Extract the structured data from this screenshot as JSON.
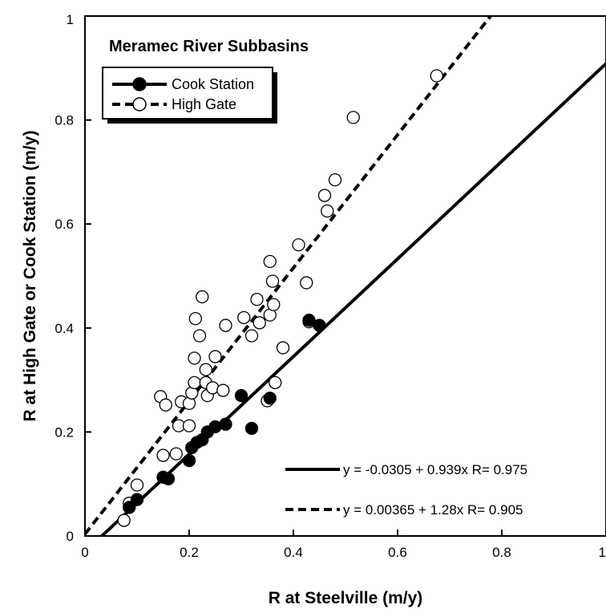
{
  "chart_data": {
    "type": "scatter",
    "title": "Meramec River Subbasins",
    "xlabel": "R at Steelville (m/y)",
    "ylabel": "R at High Gate or Cook Station (m/y)",
    "xlim": [
      0,
      1
    ],
    "ylim": [
      0,
      1
    ],
    "xticks": [
      "0",
      "0.2",
      "0.4",
      "0.6",
      "0.8",
      "1"
    ],
    "yticks": [
      "0",
      "0.2",
      "0.4",
      "0.6",
      "0.8",
      "1"
    ],
    "grid": false,
    "legend_position": "top-left",
    "series": [
      {
        "name": "Cook Station",
        "marker": "filled-circle",
        "line": "solid",
        "fit": {
          "intercept": -0.0305,
          "slope": 0.939
        },
        "equation_label": "y = -0.0305 + 0.939x   R= 0.975",
        "points": [
          [
            0.085,
            0.055
          ],
          [
            0.1,
            0.07
          ],
          [
            0.15,
            0.113
          ],
          [
            0.16,
            0.11
          ],
          [
            0.2,
            0.145
          ],
          [
            0.205,
            0.17
          ],
          [
            0.215,
            0.18
          ],
          [
            0.225,
            0.185
          ],
          [
            0.235,
            0.2
          ],
          [
            0.25,
            0.21
          ],
          [
            0.27,
            0.215
          ],
          [
            0.3,
            0.27
          ],
          [
            0.32,
            0.207
          ],
          [
            0.355,
            0.265
          ],
          [
            0.43,
            0.415
          ],
          [
            0.45,
            0.405
          ]
        ]
      },
      {
        "name": "High Gate",
        "marker": "open-circle",
        "line": "dashed",
        "fit": {
          "intercept": 0.00365,
          "slope": 1.28
        },
        "equation_label": "y = 0.00365 + 1.28x   R= 0.905",
        "points": [
          [
            0.075,
            0.03
          ],
          [
            0.085,
            0.063
          ],
          [
            0.1,
            0.098
          ],
          [
            0.145,
            0.268
          ],
          [
            0.15,
            0.155
          ],
          [
            0.155,
            0.252
          ],
          [
            0.175,
            0.158
          ],
          [
            0.18,
            0.212
          ],
          [
            0.185,
            0.258
          ],
          [
            0.2,
            0.255
          ],
          [
            0.2,
            0.212
          ],
          [
            0.205,
            0.275
          ],
          [
            0.21,
            0.295
          ],
          [
            0.21,
            0.342
          ],
          [
            0.212,
            0.418
          ],
          [
            0.22,
            0.385
          ],
          [
            0.225,
            0.46
          ],
          [
            0.232,
            0.295
          ],
          [
            0.232,
            0.32
          ],
          [
            0.235,
            0.27
          ],
          [
            0.245,
            0.285
          ],
          [
            0.25,
            0.345
          ],
          [
            0.265,
            0.28
          ],
          [
            0.27,
            0.405
          ],
          [
            0.305,
            0.42
          ],
          [
            0.32,
            0.385
          ],
          [
            0.33,
            0.455
          ],
          [
            0.335,
            0.41
          ],
          [
            0.35,
            0.26
          ],
          [
            0.355,
            0.425
          ],
          [
            0.355,
            0.528
          ],
          [
            0.36,
            0.49
          ],
          [
            0.362,
            0.445
          ],
          [
            0.365,
            0.295
          ],
          [
            0.38,
            0.362
          ],
          [
            0.41,
            0.56
          ],
          [
            0.425,
            0.487
          ],
          [
            0.43,
            0.412
          ],
          [
            0.465,
            0.625
          ],
          [
            0.46,
            0.655
          ],
          [
            0.48,
            0.685
          ],
          [
            0.515,
            0.805
          ],
          [
            0.675,
            0.885
          ]
        ]
      }
    ]
  }
}
